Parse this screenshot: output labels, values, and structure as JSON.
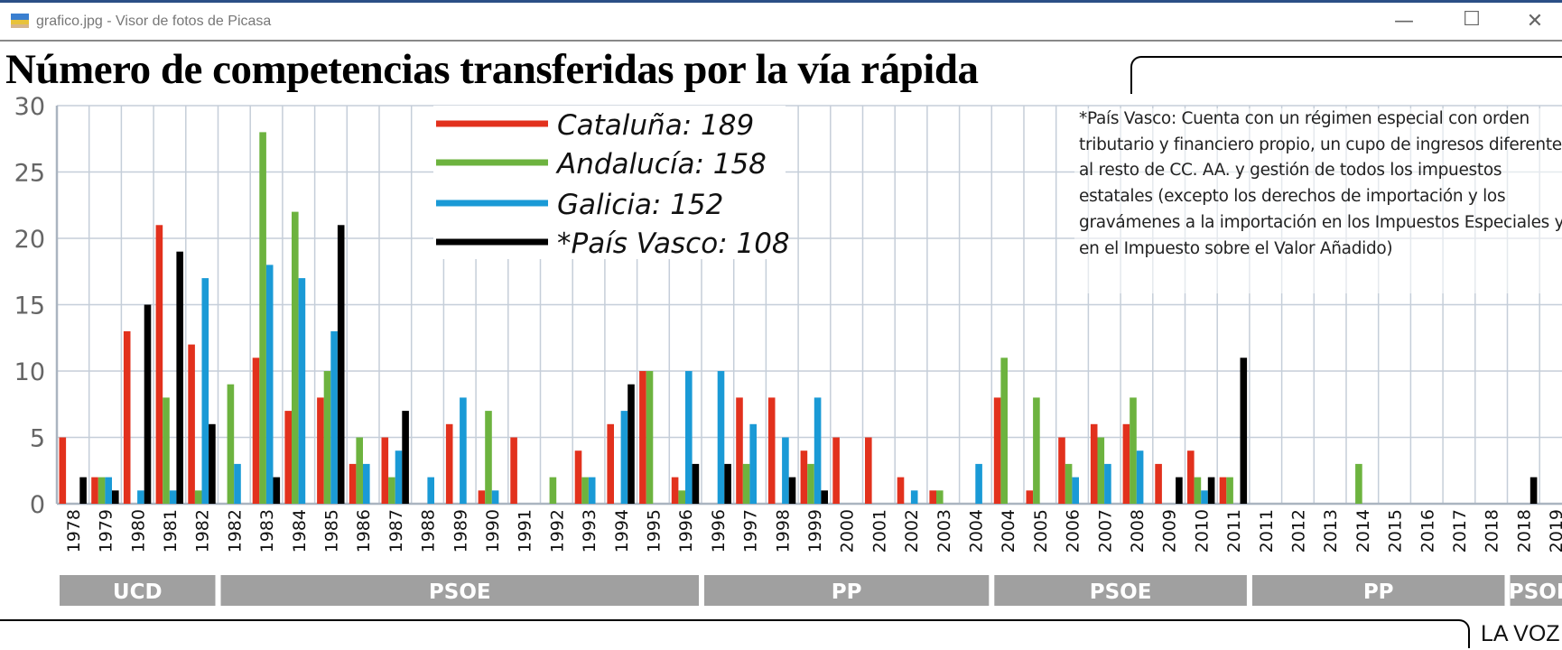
{
  "window": {
    "title": "grafico.jpg - Visor de fotos de Picasa",
    "minimize": "—",
    "maximize": "☐",
    "close": "✕"
  },
  "headline": "Número de competencias transferidas por la vía rápida",
  "note": "*País Vasco: Cuenta con un régimen especial con orden tributario y financiero propio, un cupo de ingresos diferente al resto de CC. AA. y gestión de todos los impuestos estatales (excepto los derechos de importación y los gravámenes a la importación en los Impuestos Especiales y en el Impuesto sobre el Valor Añadido)",
  "source": "LA VOZ",
  "chart_data": {
    "type": "bar",
    "title": "Número de competencias transferidas por la vía rápida",
    "ylim": [
      0,
      30
    ],
    "yticks": [
      0,
      5,
      10,
      15,
      20,
      25,
      30
    ],
    "grid": true,
    "legend_placement": "top-center",
    "categories": [
      "1978",
      "1979",
      "1980",
      "1981",
      "1982",
      "1982",
      "1983",
      "1984",
      "1985",
      "1986",
      "1987",
      "1988",
      "1989",
      "1990",
      "1991",
      "1992",
      "1993",
      "1994",
      "1995",
      "1996",
      "1996",
      "1997",
      "1998",
      "1999",
      "2000",
      "2001",
      "2002",
      "2003",
      "2004",
      "2004",
      "2005",
      "2006",
      "2007",
      "2008",
      "2009",
      "2010",
      "2011",
      "2011",
      "2012",
      "2013",
      "2014",
      "2015",
      "2016",
      "2017",
      "2018",
      "2018",
      "2019"
    ],
    "series": [
      {
        "name": "Cataluña: 189",
        "color": "#e2311d",
        "values": [
          5,
          2,
          13,
          21,
          12,
          0,
          11,
          7,
          8,
          3,
          5,
          0,
          6,
          1,
          5,
          0,
          4,
          6,
          10,
          2,
          0,
          8,
          8,
          4,
          5,
          5,
          2,
          1,
          0,
          8,
          1,
          5,
          6,
          6,
          3,
          4,
          2,
          0,
          0,
          0,
          0,
          0,
          0,
          0,
          0,
          0,
          0
        ]
      },
      {
        "name": "Andalucía: 158",
        "color": "#6db33f",
        "values": [
          0,
          2,
          0,
          8,
          1,
          9,
          28,
          22,
          10,
          5,
          2,
          0,
          0,
          7,
          0,
          2,
          2,
          0,
          10,
          1,
          0,
          3,
          0,
          3,
          0,
          0,
          0,
          1,
          0,
          11,
          8,
          3,
          5,
          8,
          0,
          2,
          2,
          0,
          0,
          0,
          3,
          0,
          0,
          0,
          0,
          0,
          0
        ]
      },
      {
        "name": "Galicia: 152",
        "color": "#1a9ad6",
        "values": [
          0,
          2,
          1,
          1,
          17,
          3,
          18,
          17,
          13,
          3,
          4,
          2,
          8,
          1,
          0,
          0,
          2,
          7,
          0,
          10,
          10,
          6,
          5,
          8,
          0,
          0,
          1,
          0,
          3,
          0,
          0,
          2,
          3,
          4,
          0,
          1,
          0,
          0,
          0,
          0,
          0,
          0,
          0,
          0,
          0,
          0,
          0
        ]
      },
      {
        "name": "*País Vasco: 108",
        "color": "#000000",
        "values": [
          2,
          1,
          15,
          19,
          6,
          0,
          2,
          0,
          21,
          0,
          7,
          0,
          0,
          0,
          0,
          0,
          0,
          9,
          0,
          3,
          3,
          0,
          2,
          1,
          0,
          0,
          0,
          0,
          0,
          0,
          0,
          0,
          0,
          0,
          2,
          2,
          11,
          0,
          0,
          0,
          0,
          0,
          0,
          0,
          0,
          2,
          0
        ]
      }
    ],
    "periods": [
      {
        "label": "UCD",
        "from": 0,
        "to": 4
      },
      {
        "label": "PSOE",
        "from": 5,
        "to": 19
      },
      {
        "label": "PP",
        "from": 20,
        "to": 28
      },
      {
        "label": "PSOE",
        "from": 29,
        "to": 36
      },
      {
        "label": "PP",
        "from": 37,
        "to": 44
      },
      {
        "label": "PSOE",
        "from": 45,
        "to": 46
      }
    ],
    "period_color": "#a0a0a0"
  }
}
